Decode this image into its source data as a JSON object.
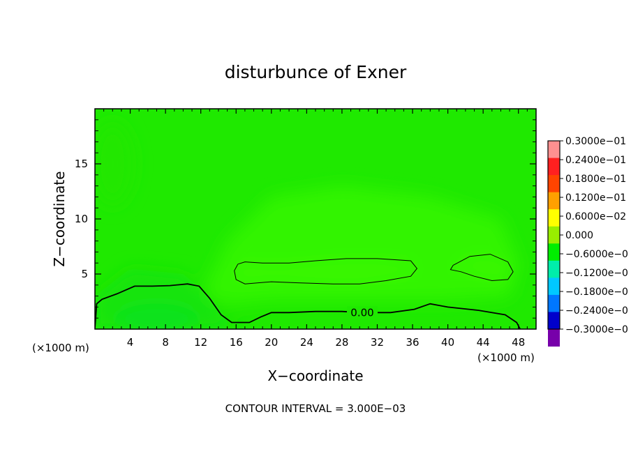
{
  "chart_data": {
    "type": "heatmap",
    "title": "disturbunce of Exner",
    "xlabel": "X−coordinate",
    "ylabel": "Z−coordinate",
    "x_unit_left": "(×1000 m)",
    "x_unit_right": "(×1000 m)",
    "xlim": [
      0,
      50
    ],
    "ylim": [
      0,
      20
    ],
    "x_ticks": [
      4,
      8,
      12,
      16,
      20,
      24,
      28,
      32,
      36,
      40,
      44,
      48
    ],
    "x_tick_labels": [
      "4",
      "8",
      "12",
      "16",
      "20",
      "24",
      "28",
      "32",
      "36",
      "40",
      "44",
      "48"
    ],
    "y_ticks": [
      5,
      10,
      15
    ],
    "y_tick_labels": [
      "5",
      "10",
      "15"
    ],
    "contour_interval_text": "CONTOUR INTERVAL = 3.000E−03",
    "contour_label": "0.00",
    "colorbar": {
      "range": [
        -0.03,
        0.03
      ],
      "labels": [
        "0.3000e−01",
        "0.2400e−01",
        "0.1800e−01",
        "0.1200e−01",
        "0.6000e−02",
        "0.000",
        "−0.6000e−0",
        "−0.1200e−0",
        "−0.1800e−0",
        "−0.2400e−0",
        "−0.3000e−0"
      ],
      "colors": [
        "#ff9090",
        "#ff2020",
        "#ff4400",
        "#ffa000",
        "#ffff00",
        "#99ee00",
        "#00ee00",
        "#00eeaa",
        "#00c8ff",
        "#0077ff",
        "#0000cc",
        "#7700aa"
      ]
    },
    "field_colors": {
      "background": "#1fe900",
      "positive_region": "#33f400",
      "negative_region": "#16e40a",
      "lowest_region": "#0de21a"
    },
    "contours": [
      {
        "level": 0.0,
        "points": [
          [
            0,
            0.1
          ],
          [
            0.2,
            2.3
          ],
          [
            0.8,
            2.7
          ],
          [
            2.5,
            3.2
          ],
          [
            4.5,
            3.9
          ],
          [
            6.5,
            3.9
          ],
          [
            8.5,
            3.95
          ],
          [
            10.5,
            4.1
          ],
          [
            11.8,
            3.9
          ],
          [
            13,
            2.8
          ],
          [
            14.3,
            1.3
          ],
          [
            15.5,
            0.6
          ],
          [
            17.5,
            0.6
          ],
          [
            18.8,
            1.1
          ],
          [
            20,
            1.5
          ],
          [
            22,
            1.5
          ],
          [
            25,
            1.6
          ],
          [
            28,
            1.6
          ],
          [
            30.3,
            1.5
          ],
          [
            33.5,
            1.5
          ],
          [
            36.2,
            1.8
          ],
          [
            38,
            2.3
          ],
          [
            40,
            2.0
          ],
          [
            43.5,
            1.7
          ],
          [
            46.5,
            1.3
          ],
          [
            47.8,
            0.6
          ],
          [
            48.2,
            0
          ]
        ]
      },
      {
        "level": 0.003,
        "points": [
          [
            16.2,
            5.9
          ],
          [
            17,
            6.1
          ],
          [
            19,
            6.0
          ],
          [
            22,
            6.0
          ],
          [
            25,
            6.2
          ],
          [
            28.5,
            6.4
          ],
          [
            32,
            6.4
          ],
          [
            35.8,
            6.2
          ],
          [
            36.5,
            5.5
          ],
          [
            35.8,
            4.8
          ],
          [
            33,
            4.4
          ],
          [
            30,
            4.1
          ],
          [
            27,
            4.1
          ],
          [
            23,
            4.2
          ],
          [
            20,
            4.3
          ],
          [
            17,
            4.1
          ],
          [
            16,
            4.5
          ],
          [
            15.8,
            5.3
          ],
          [
            16.2,
            5.9
          ]
        ]
      },
      {
        "level": 0.003,
        "points": [
          [
            40.6,
            5.8
          ],
          [
            42.5,
            6.6
          ],
          [
            44.8,
            6.8
          ],
          [
            46.8,
            6.1
          ],
          [
            47.4,
            5.2
          ],
          [
            46.8,
            4.5
          ],
          [
            45,
            4.4
          ],
          [
            43,
            4.8
          ],
          [
            41.5,
            5.2
          ],
          [
            40.3,
            5.4
          ],
          [
            40.6,
            5.8
          ]
        ]
      }
    ]
  }
}
